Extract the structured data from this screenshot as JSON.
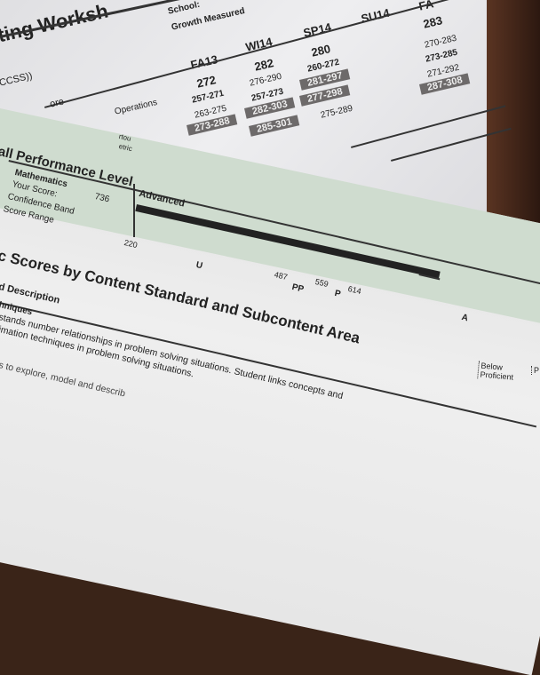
{
  "back_sheet": {
    "title": "ting Worksh",
    "school_label": "School:",
    "growth_label": "Growth Measured",
    "row_label_ccss": "CCSS))",
    "row_label_score": "ore",
    "row_label_operations": "Operations",
    "terms": [
      {
        "term": "FA13",
        "score": "272",
        "ranges": [
          "257-271",
          "263-275",
          "273-288"
        ],
        "highlighted": [
          "273-288"
        ]
      },
      {
        "term": "WI14",
        "score": "282",
        "ranges": [
          "276-290",
          "257-273",
          "282-303",
          "285-301"
        ],
        "highlighted": [
          "282-303",
          "285-301"
        ]
      },
      {
        "term": "SP14",
        "score": "280",
        "ranges": [
          "260-272",
          "281-297",
          "277-298",
          "275-289"
        ],
        "highlighted": [
          "281-297",
          "277-298"
        ]
      },
      {
        "term": "SU14",
        "score": "",
        "ranges": []
      },
      {
        "term": "FA",
        "score": "283",
        "ranges": [
          "270-283",
          "273-285",
          "271-292",
          "287-308"
        ],
        "highlighted": [
          "287-308"
        ]
      }
    ]
  },
  "front_sheet": {
    "stamp_text": "etric",
    "stamp_text2": "rtou",
    "section1_title": "all Performance Level",
    "subject": "Mathematics",
    "your_score_label": "Your Score:",
    "your_score": "736",
    "confidence_band_label": "Confidence Band",
    "score_range_label": "Score Range",
    "level": "Advanced",
    "scale_min": "220",
    "cut_scores": [
      "487",
      "559",
      "614"
    ],
    "level_codes": [
      "U",
      "PP",
      "P",
      "A"
    ],
    "section2_title": "c Scores by Content Standard and Subcontent Area",
    "column_description": "d Description",
    "subhead": "hniques",
    "desc_line1": "stands number relationships in problem solving situations.  Student links concepts and",
    "desc_line2": "imation techniques in problem solving situations.",
    "desc_line3": "s to explore, model and describ",
    "col_below_1": "Below",
    "col_below_2": "Proficient",
    "col_next": "P"
  },
  "colors": {
    "highlight_box": "#6d6a6a",
    "green_band": "#cfdccf",
    "wood": "#3a2418"
  }
}
